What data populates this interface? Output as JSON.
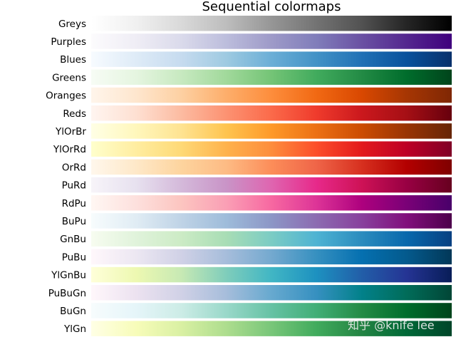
{
  "chart_data": {
    "type": "heatmap",
    "title": "Sequential colormaps",
    "colormaps": [
      {
        "name": "Greys",
        "colors": [
          "#ffffff",
          "#f0f0f0",
          "#d9d9d9",
          "#bdbdbd",
          "#969696",
          "#737373",
          "#525252",
          "#252525",
          "#000000"
        ]
      },
      {
        "name": "Purples",
        "colors": [
          "#fcfbfd",
          "#efedf5",
          "#dadaeb",
          "#bcbddc",
          "#9e9ac8",
          "#807dba",
          "#6a51a3",
          "#54278f",
          "#3f007d"
        ]
      },
      {
        "name": "Blues",
        "colors": [
          "#f7fbff",
          "#deebf7",
          "#c6dbef",
          "#9ecae1",
          "#6baed6",
          "#4292c6",
          "#2171b5",
          "#08519c",
          "#08306b"
        ]
      },
      {
        "name": "Greens",
        "colors": [
          "#f7fcf5",
          "#e5f5e0",
          "#c7e9c0",
          "#a1d99b",
          "#74c476",
          "#41ab5d",
          "#238b45",
          "#006d2c",
          "#00441b"
        ]
      },
      {
        "name": "Oranges",
        "colors": [
          "#fff5eb",
          "#fee6ce",
          "#fdd0a2",
          "#fdae6b",
          "#fd8d3c",
          "#f16913",
          "#d94801",
          "#a63603",
          "#7f2704"
        ]
      },
      {
        "name": "Reds",
        "colors": [
          "#fff5f0",
          "#fee0d2",
          "#fcbba1",
          "#fc9272",
          "#fb6a4a",
          "#ef3b2c",
          "#cb181d",
          "#a50f15",
          "#67000d"
        ]
      },
      {
        "name": "YlOrBr",
        "colors": [
          "#ffffe5",
          "#fff7bc",
          "#fee391",
          "#fec44f",
          "#fe9929",
          "#ec7014",
          "#cc4c02",
          "#993404",
          "#662506"
        ]
      },
      {
        "name": "YlOrRd",
        "colors": [
          "#ffffcc",
          "#ffeda0",
          "#fed976",
          "#feb24c",
          "#fd8d3c",
          "#fc4e2a",
          "#e31a1c",
          "#bd0026",
          "#800026"
        ]
      },
      {
        "name": "OrRd",
        "colors": [
          "#fff7ec",
          "#fee8c8",
          "#fdd49e",
          "#fdbb84",
          "#fc8d59",
          "#ef6548",
          "#d7301f",
          "#b30000",
          "#7f0000"
        ]
      },
      {
        "name": "PuRd",
        "colors": [
          "#f7f4f9",
          "#e7e1ef",
          "#d4b9da",
          "#c994c7",
          "#df65b0",
          "#e7298a",
          "#ce1256",
          "#980043",
          "#67001f"
        ]
      },
      {
        "name": "RdPu",
        "colors": [
          "#fff7f3",
          "#fde0dd",
          "#fcc5c0",
          "#fa9fb5",
          "#f768a1",
          "#dd3497",
          "#ae017e",
          "#7a0177",
          "#49006a"
        ]
      },
      {
        "name": "BuPu",
        "colors": [
          "#f7fcfd",
          "#e0ecf4",
          "#bfd3e6",
          "#9ebcda",
          "#8c96c6",
          "#8c6bb1",
          "#88419d",
          "#810f7c",
          "#4d004b"
        ]
      },
      {
        "name": "GnBu",
        "colors": [
          "#f7fcf0",
          "#e0f3db",
          "#ccebc5",
          "#a8ddb5",
          "#7bccc4",
          "#4eb3d3",
          "#2b8cbe",
          "#0868ac",
          "#084081"
        ]
      },
      {
        "name": "PuBu",
        "colors": [
          "#fff7fb",
          "#ece7f2",
          "#d0d1e6",
          "#a6bddb",
          "#74a9cf",
          "#3690c0",
          "#0570b0",
          "#045a8d",
          "#023858"
        ]
      },
      {
        "name": "YlGnBu",
        "colors": [
          "#ffffd9",
          "#edf8b1",
          "#c7e9b4",
          "#7fcdbb",
          "#41b6c4",
          "#1d91c0",
          "#225ea8",
          "#253494",
          "#081d58"
        ]
      },
      {
        "name": "PuBuGn",
        "colors": [
          "#fff7fb",
          "#ece2f0",
          "#d0d1e6",
          "#a6bddb",
          "#67a9cf",
          "#3690c0",
          "#02818a",
          "#016c59",
          "#014636"
        ]
      },
      {
        "name": "BuGn",
        "colors": [
          "#f7fcfd",
          "#e5f5f9",
          "#ccece6",
          "#99d8c9",
          "#66c2a4",
          "#41ae76",
          "#238b45",
          "#006d2c",
          "#00441b"
        ]
      },
      {
        "name": "YlGn",
        "colors": [
          "#ffffe5",
          "#f7fcb9",
          "#d9f0a3",
          "#addd8e",
          "#78c679",
          "#41ab5d",
          "#238443",
          "#006837",
          "#004529"
        ]
      }
    ]
  },
  "watermark": "知乎 @knife lee"
}
